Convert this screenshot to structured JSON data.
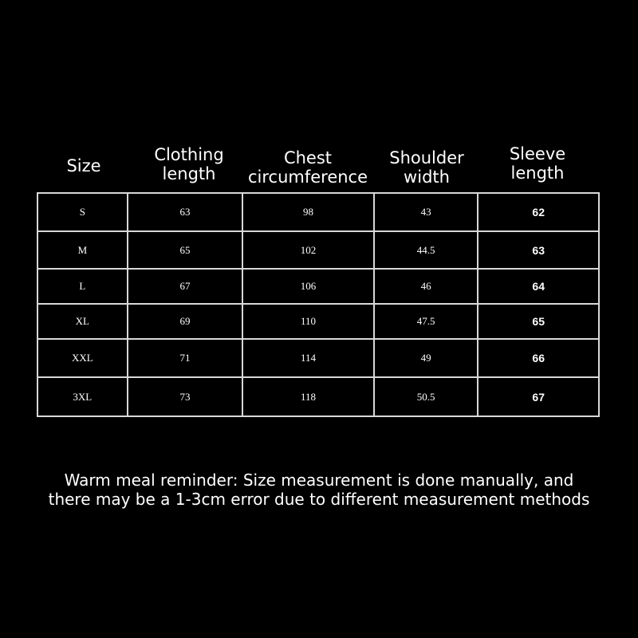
{
  "headers": [
    {
      "line1": "Size",
      "line2": ""
    },
    {
      "line1": "Clothing",
      "line2": "length"
    },
    {
      "line1": "Chest",
      "line2": "circumference"
    },
    {
      "line1": "Shoulder",
      "line2": "width"
    },
    {
      "line1": "Sleeve",
      "line2": "length"
    }
  ],
  "rows": [
    [
      "S",
      "63",
      "98",
      "43",
      "62"
    ],
    [
      "M",
      "65",
      "102",
      "44.5",
      "63"
    ],
    [
      "L",
      "67",
      "106",
      "46",
      "64"
    ],
    [
      "XL",
      "69",
      "110",
      "47.5",
      "65"
    ],
    [
      "XXL",
      "71",
      "114",
      "49",
      "66"
    ],
    [
      "3XL",
      "73",
      "118",
      "50.5",
      "67"
    ]
  ],
  "note": {
    "line1": "Warm meal reminder: Size measurement is done manually, and",
    "line2": "there may be a 1-3cm error due to different measurement methods"
  }
}
